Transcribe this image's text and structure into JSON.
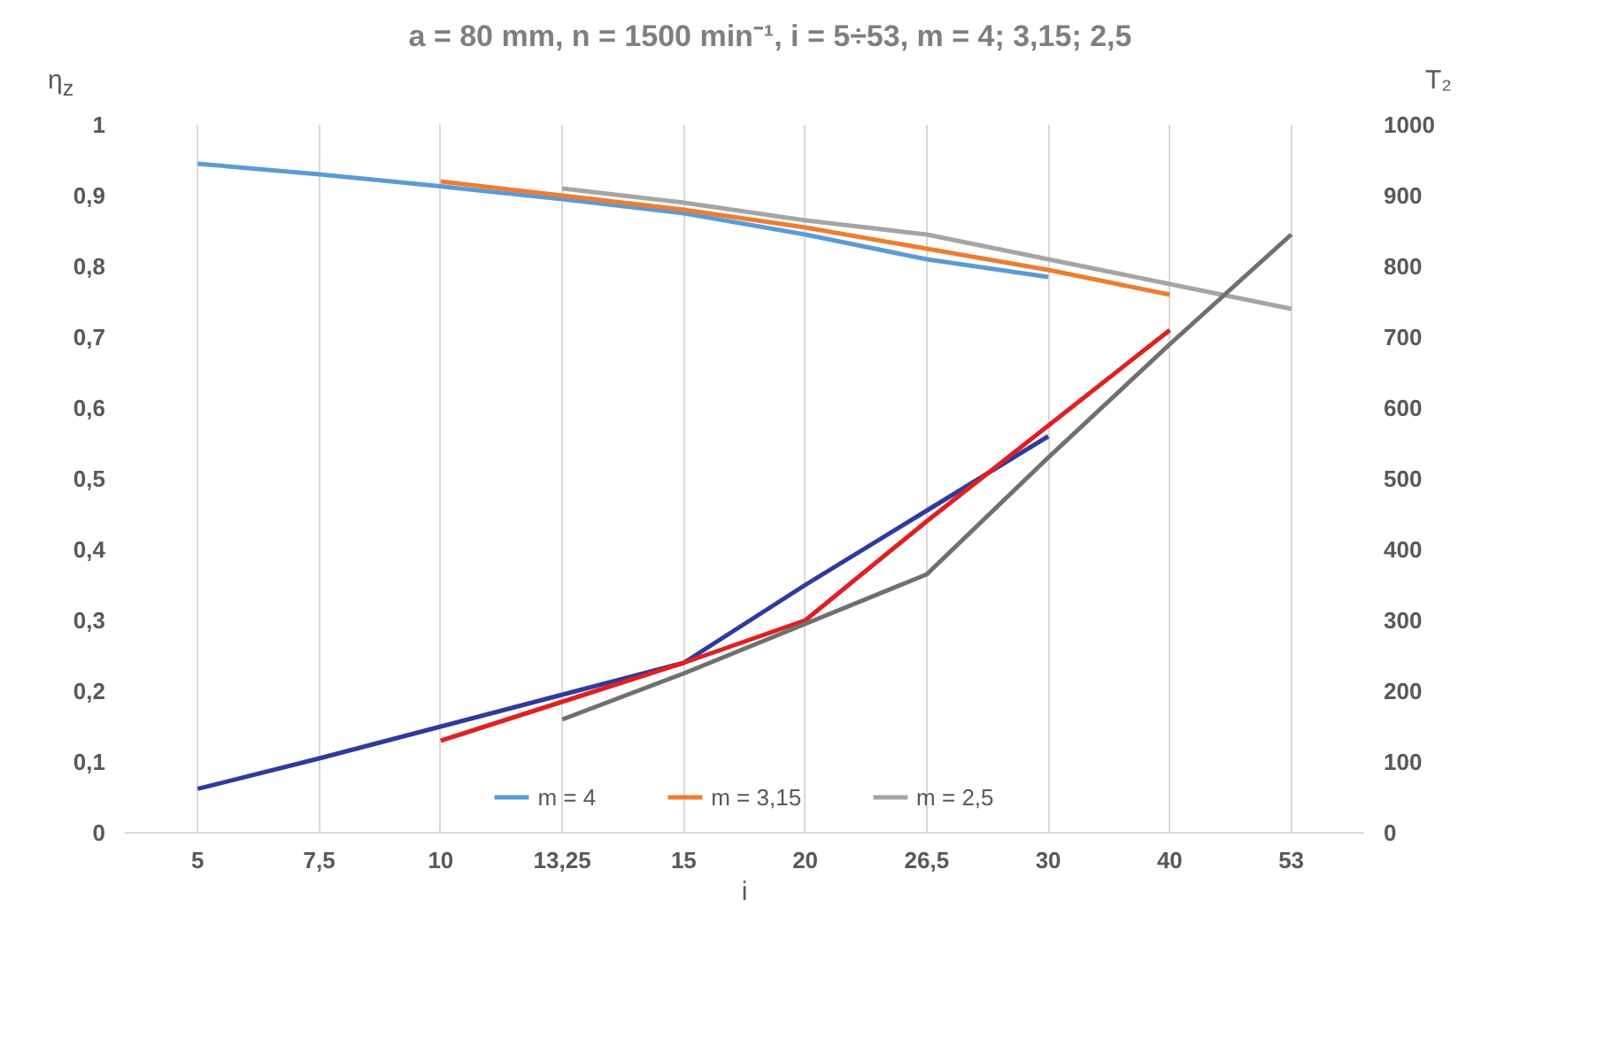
{
  "chart_data": {
    "type": "line",
    "title": "a = 80 mm,  n = 1500 min⁻¹,  i = 5÷53,  m = 4; 3,15; 2,5",
    "xlabel": "i",
    "ylabel": "η$_{z}$",
    "y2label": "T₂",
    "categories": [
      "5",
      "7,5",
      "10",
      "13,25",
      "15",
      "20",
      "26,5",
      "30",
      "40",
      "53"
    ],
    "series": [
      {
        "name": "m = 4",
        "color": "#5b9bd5",
        "values": [
          0.945,
          0.93,
          0.913,
          0.895,
          0.875,
          0.845,
          0.81,
          0.785,
          null,
          null
        ]
      },
      {
        "name": "m = 3,15",
        "color": "#ed7d31",
        "values": [
          null,
          null,
          0.92,
          0.9,
          0.88,
          0.855,
          0.825,
          0.795,
          0.76,
          null
        ]
      },
      {
        "name": "m = 2,5",
        "color": "#a5a5a5",
        "values": [
          null,
          null,
          null,
          0.91,
          0.89,
          0.865,
          0.845,
          0.81,
          0.775,
          0.74
        ]
      },
      {
        "color": "#2e3a9e",
        "axis": "y2",
        "values": [
          62,
          105,
          150,
          195,
          240,
          350,
          455,
          560,
          null,
          null
        ]
      },
      {
        "color": "#e02020",
        "axis": "y2",
        "values": [
          null,
          null,
          130,
          185,
          240,
          300,
          440,
          575,
          710,
          null
        ]
      },
      {
        "color": "#707070",
        "axis": "y2",
        "values": [
          null,
          null,
          null,
          160,
          225,
          295,
          365,
          530,
          690,
          845
        ]
      }
    ],
    "ylim": [
      0,
      1
    ],
    "yticks": [
      0,
      {
        "value": 0.1,
        "label": "0,1"
      },
      {
        "value": 0.2,
        "label": "0,2"
      },
      {
        "value": 0.3,
        "label": "0,3"
      },
      {
        "value": 0.4,
        "label": "0,4"
      },
      {
        "value": 0.5,
        "label": "0,5"
      },
      {
        "value": 0.6,
        "label": "0,6"
      },
      {
        "value": 0.7,
        "label": "0,7"
      },
      {
        "value": 0.8,
        "label": "0,8"
      },
      {
        "value": 0.9,
        "label": "0,9"
      },
      1
    ],
    "y2lim": [
      0,
      1000
    ],
    "y2ticks": [
      0,
      100,
      200,
      300,
      400,
      500,
      600,
      700,
      800,
      900,
      1000
    ],
    "grid": "x",
    "legend": "bottom"
  }
}
